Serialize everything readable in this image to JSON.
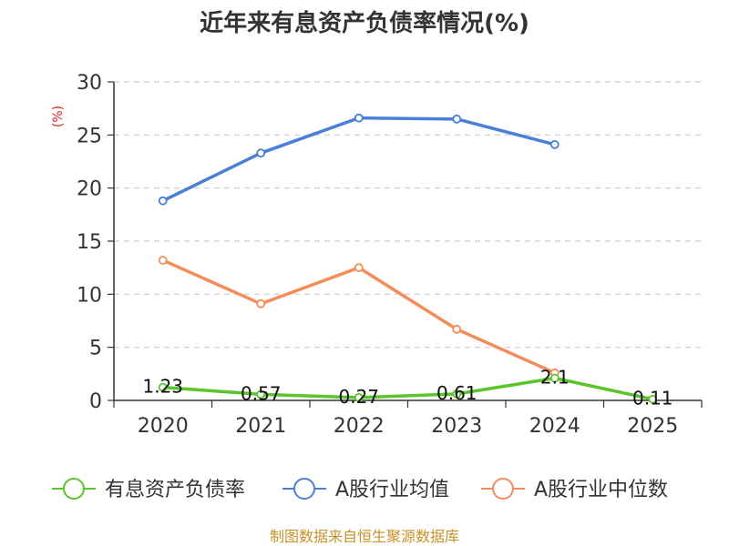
{
  "chart_data": {
    "type": "line",
    "title": "近年来有息资产负债率情况(%)",
    "ylabel": "(%)",
    "xlabel": "",
    "categories": [
      "2020",
      "2021",
      "2022",
      "2023",
      "2024",
      "2025"
    ],
    "ylim": [
      0,
      30
    ],
    "yticks": [
      0,
      5,
      10,
      15,
      20,
      25,
      30
    ],
    "grid": true,
    "legend_position": "bottom",
    "series": [
      {
        "name": "有息资产负债率",
        "color": "#5bc42b",
        "values": [
          1.23,
          0.57,
          0.27,
          0.61,
          2.1,
          0.11
        ],
        "labels": [
          "1.23",
          "0.57",
          "0.27",
          "0.61",
          "2.1",
          "0.11"
        ]
      },
      {
        "name": "A股行业均值",
        "color": "#4a7fd8",
        "values": [
          18.8,
          23.3,
          26.6,
          26.5,
          24.1,
          null
        ]
      },
      {
        "name": "A股行业中位数",
        "color": "#f58c5a",
        "values": [
          13.2,
          9.1,
          12.5,
          6.7,
          2.6,
          null
        ]
      }
    ]
  },
  "source_text": "制图数据来自恒生聚源数据库"
}
